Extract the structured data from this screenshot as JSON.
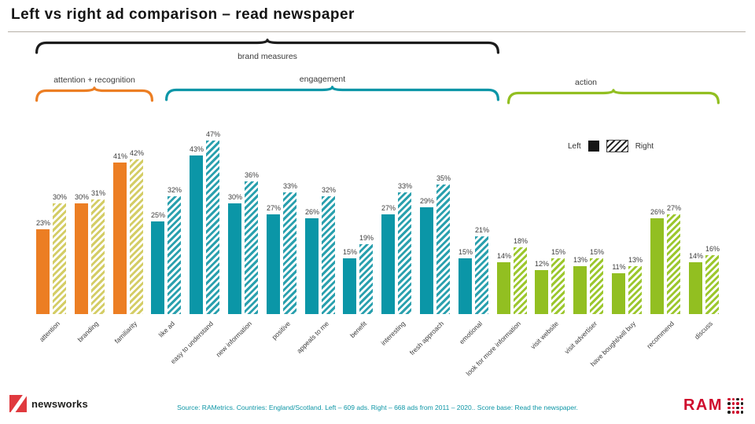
{
  "title": "Left vs right ad comparison – read newspaper",
  "legend": {
    "left_label": "Left",
    "right_label": "Right"
  },
  "braces": {
    "brand": "brand measures",
    "attention": "attention + recognition",
    "engagement": "engagement",
    "action": "action"
  },
  "colors": {
    "brand_brace": "#1c1c1c",
    "attention_orange": "#ec7e23",
    "attention_hatch_yellow": "#d4cd66",
    "engagement_teal": "#0b96a7",
    "action_green": "#92bf21",
    "logo_red": "#cf0a2c",
    "footer_teal": "#0e96a6"
  },
  "footer": {
    "source": "Source: RAMetrics. Countries: England/Scotland. Left – 609 ads. Right – 668 ads from 2011 – 2020.. Score base: Read the newspaper."
  },
  "logos": {
    "newsworks": "newsworks",
    "ram": "RAM"
  },
  "chart_data": {
    "type": "bar",
    "unit": "%",
    "ylim": [
      0,
      50
    ],
    "grid": false,
    "legend_position": "top-right",
    "title": "Left vs right ad comparison – read newspaper",
    "categories": [
      "attention",
      "branding",
      "familiarity",
      "like ad",
      "easy to understand",
      "new information",
      "positive",
      "appeals to me",
      "benefit",
      "interesting",
      "fresh approach",
      "emotional",
      "look for more information",
      "visit website",
      "visit advertiser",
      "have bought/will buy",
      "recommend",
      "discuss"
    ],
    "series": [
      {
        "name": "Left",
        "values": [
          23,
          30,
          41,
          25,
          43,
          30,
          27,
          26,
          15,
          27,
          29,
          15,
          14,
          12,
          13,
          11,
          26,
          14
        ]
      },
      {
        "name": "Right",
        "values": [
          30,
          31,
          42,
          32,
          47,
          36,
          33,
          32,
          19,
          33,
          35,
          21,
          18,
          15,
          15,
          13,
          27,
          16
        ]
      }
    ],
    "sections": [
      {
        "label": "attention + recognition",
        "start": 0,
        "end": 2,
        "color": "#ec7e23",
        "hatch_color": "#d4cd66"
      },
      {
        "label": "engagement",
        "start": 3,
        "end": 11,
        "color": "#0b96a7",
        "hatch_color": "#2aa0ae"
      },
      {
        "label": "action",
        "start": 12,
        "end": 17,
        "color": "#92bf21",
        "hatch_color": "#9cc72e"
      }
    ]
  }
}
